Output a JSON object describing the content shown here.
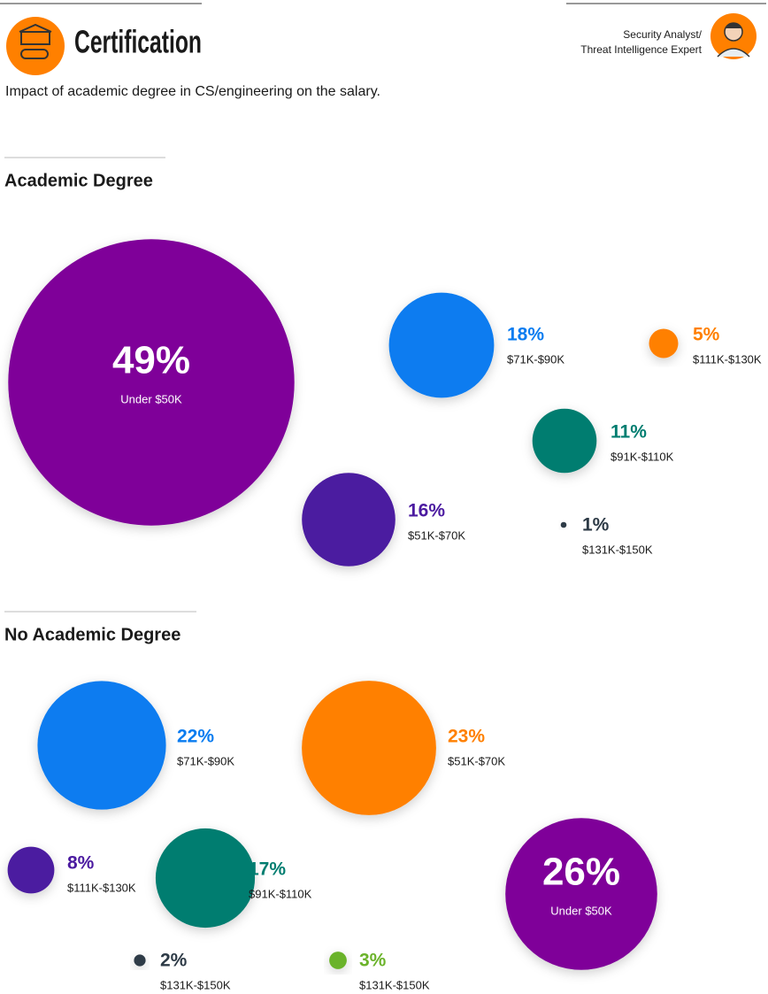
{
  "header": {
    "title": "Certification",
    "subtitle": "Impact of academic degree in CS/engineering on the salary.",
    "role": [
      "Security Analyst/",
      "Threat Intelligence Expert"
    ]
  },
  "chart_data": [
    {
      "type": "bubble",
      "title": "Academic Degree",
      "categories": [
        "Under $50K",
        "$71K-$90K",
        "$111K-$130K",
        "$91K-$110K",
        "$51K-$70K",
        "$131K-$150K"
      ],
      "values": [
        49,
        18,
        5,
        11,
        16,
        1
      ],
      "value_labels": [
        "49%",
        "18%",
        "5%",
        "11%",
        "16%",
        "1%"
      ],
      "colors": [
        "#7f0399",
        "#0a7cf0",
        "#ff8000",
        "#007d70",
        "#4b1aa0",
        "#2d3a46"
      ]
    },
    {
      "type": "bubble",
      "title": "No Academic Degree",
      "categories": [
        "$71K-$90K",
        "$51K-$70K",
        "$111K-$130K",
        "$91K-$110K",
        "Under $50K",
        "$131K-$150K",
        "$131K-$150K"
      ],
      "values": [
        22,
        23,
        8,
        17,
        26,
        2,
        3
      ],
      "value_labels": [
        "22%",
        "23%",
        "8%",
        "17%",
        "26%",
        "2%",
        "3%"
      ],
      "colors": [
        "#0a7cf0",
        "#ff8000",
        "#4b1aa0",
        "#007d70",
        "#7f0399",
        "#2d3a46",
        "#6bb32a"
      ]
    }
  ]
}
